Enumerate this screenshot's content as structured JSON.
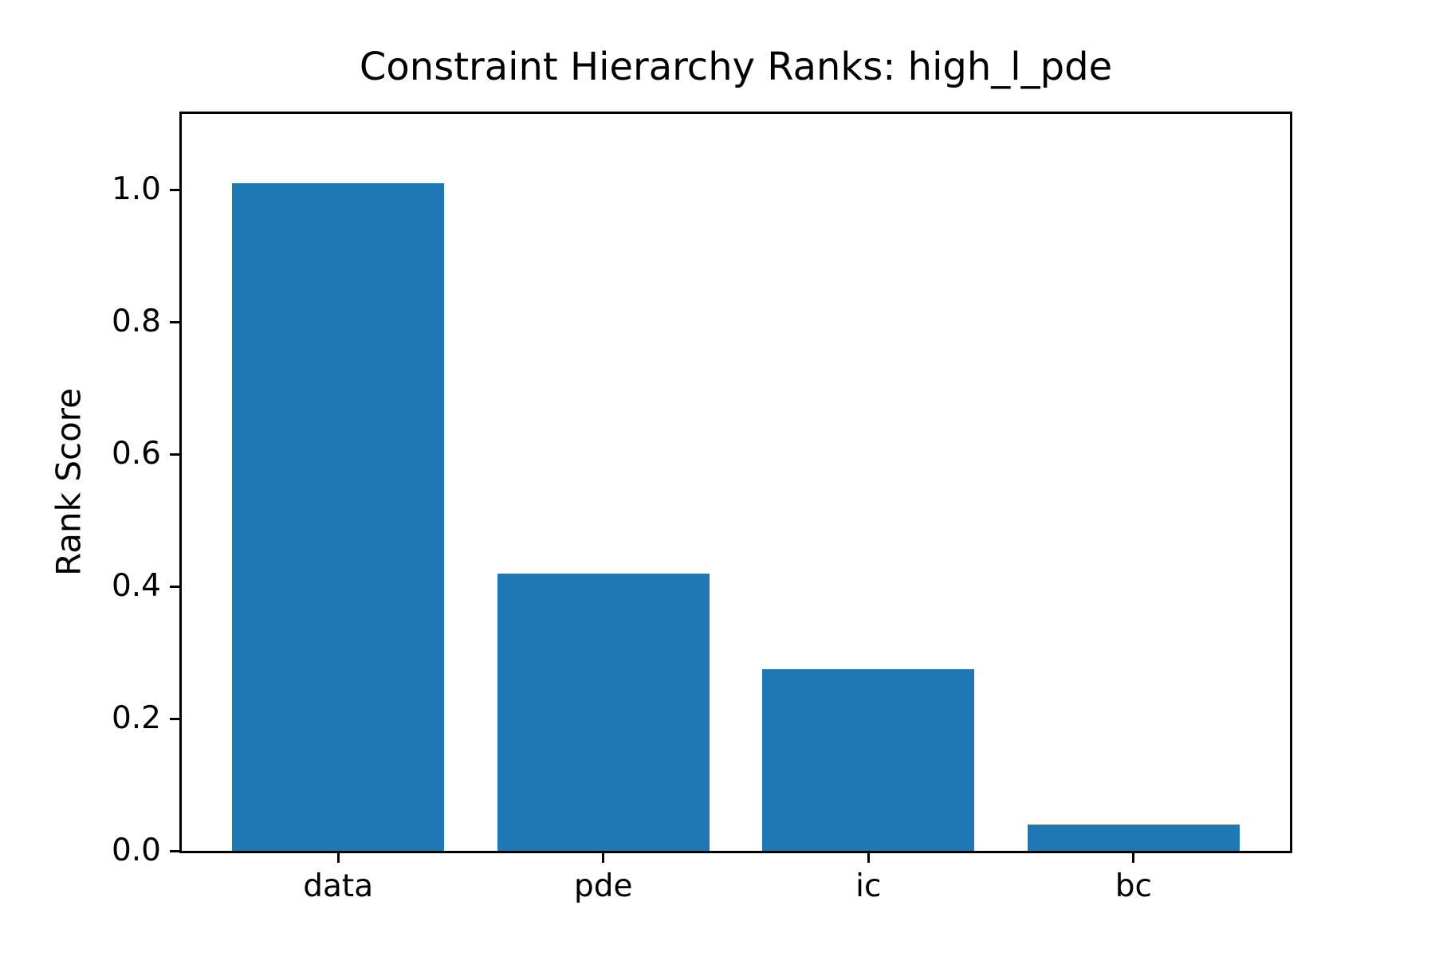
{
  "chart_data": {
    "type": "bar",
    "title": "Constraint Hierarchy Ranks: high_l_pde",
    "xlabel": "",
    "ylabel": "Rank Score",
    "categories": [
      "data",
      "pde",
      "ic",
      "bc"
    ],
    "values": [
      1.01,
      0.42,
      0.275,
      0.04
    ],
    "yticks": [
      0.0,
      0.2,
      0.4,
      0.6,
      0.8,
      1.0
    ],
    "ytick_labels": [
      "0.0",
      "0.2",
      "0.4",
      "0.6",
      "0.8",
      "1.0"
    ],
    "ylim": [
      0,
      1.115
    ],
    "xlim": [
      -0.59,
      3.59
    ],
    "bar_width": 0.8,
    "bar_color": "#1f77b4",
    "axis_color": "#000000",
    "background_color": "#ffffff",
    "grid": false,
    "legend": "none"
  }
}
